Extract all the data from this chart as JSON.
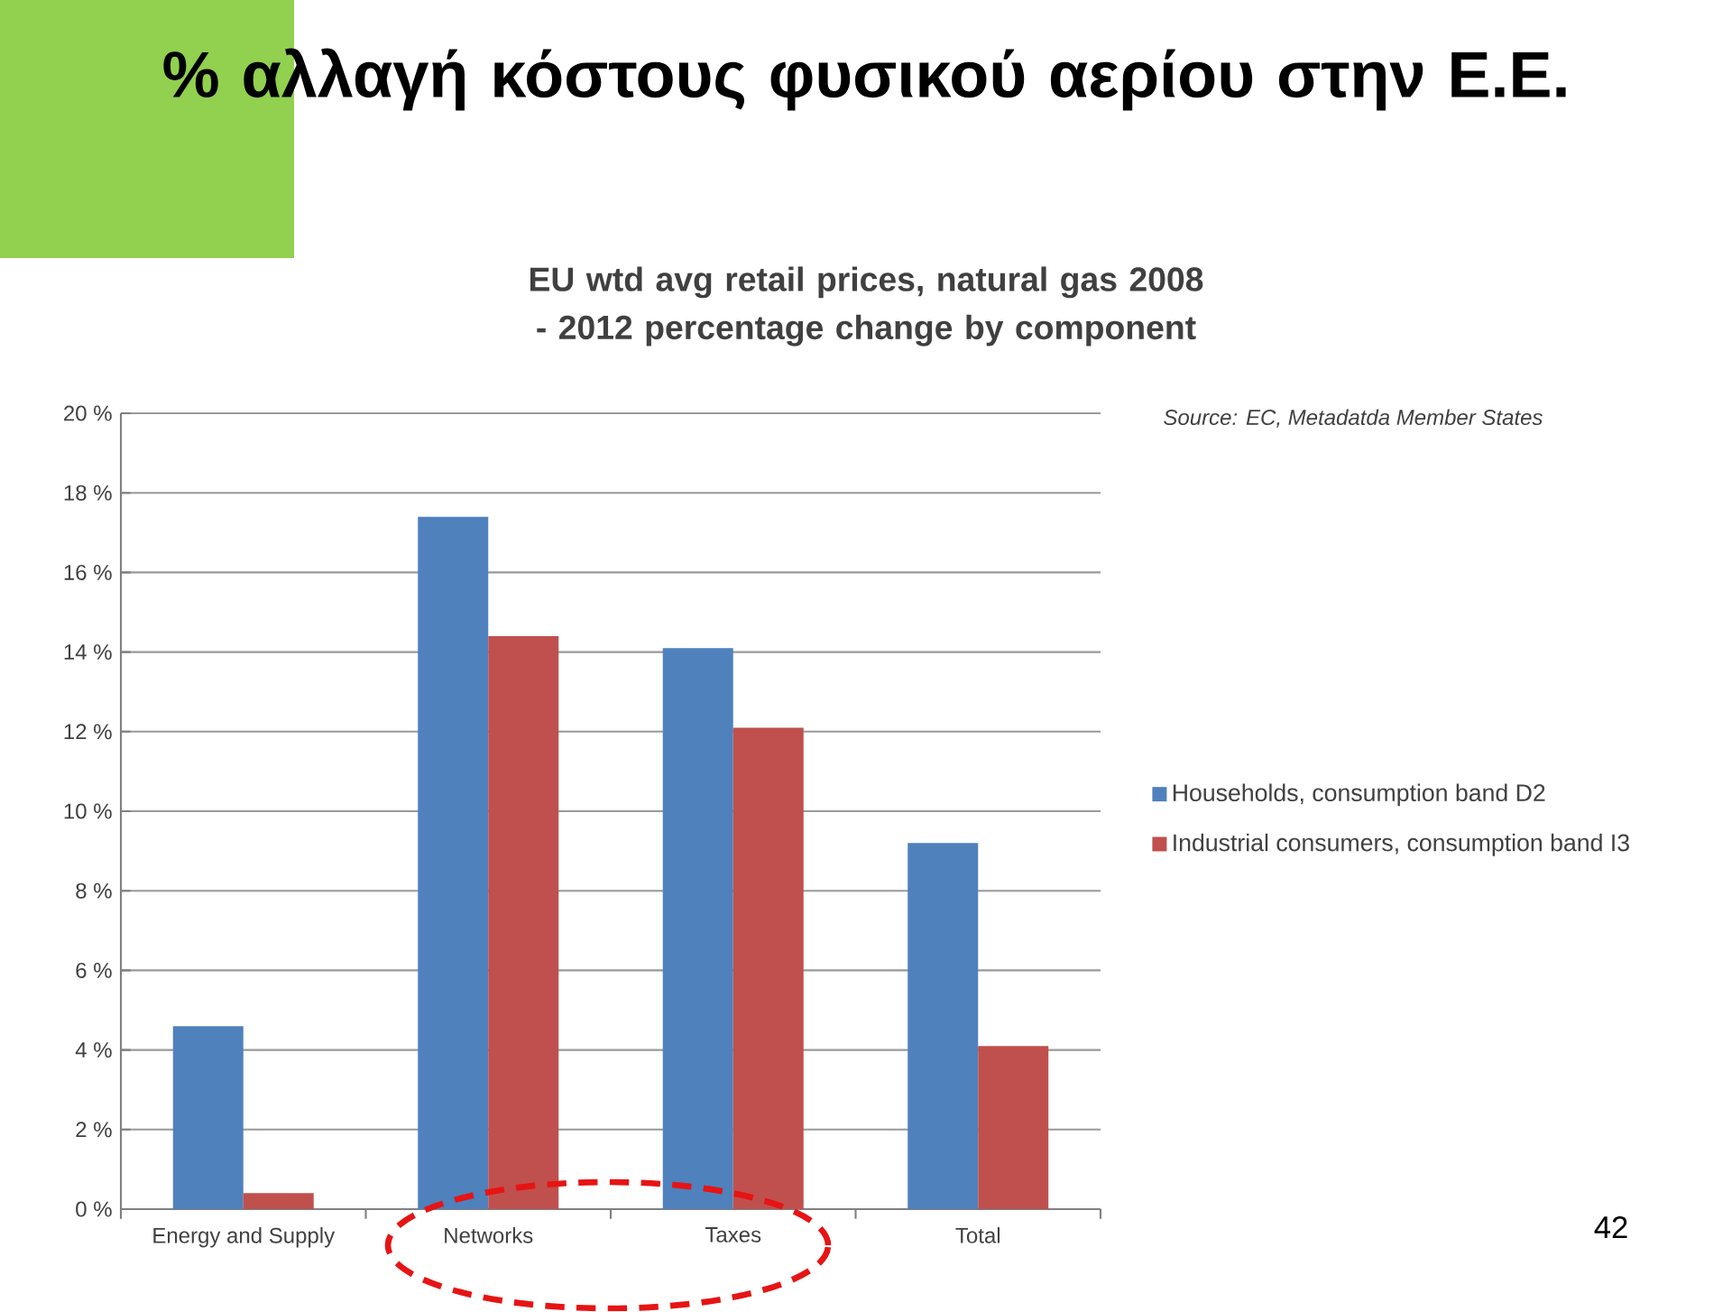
{
  "chart_data": {
    "type": "bar",
    "title": "% αλλαγή κόστους φυσικού αερίου στην Ε.Ε.",
    "subtitle": "EU wtd avg retail prices, natural gas 2008 - 2012 percentage change by component",
    "categories": [
      "Energy and Supply",
      "Networks",
      "Taxes",
      "Total"
    ],
    "series": [
      {
        "name": "Households, consumption band D2",
        "color": "#4f81bd",
        "values": [
          4.6,
          17.4,
          14.1,
          9.2
        ]
      },
      {
        "name": "Industrial consumers, consumption band I3",
        "color": "#c0504d",
        "values": [
          0.4,
          14.4,
          12.1,
          4.1
        ]
      }
    ],
    "ylim": [
      0,
      20
    ],
    "yticks": [
      {
        "value": 0,
        "label": "0 %"
      },
      {
        "value": 2,
        "label": "2 %"
      },
      {
        "value": 4,
        "label": "4 %"
      },
      {
        "value": 6,
        "label": "6 %"
      },
      {
        "value": 8,
        "label": "8 %"
      },
      {
        "value": 10,
        "label": "10 %"
      },
      {
        "value": 12,
        "label": "12 %"
      },
      {
        "value": 14,
        "label": "14 %"
      },
      {
        "value": 16,
        "label": "16 %"
      },
      {
        "value": 18,
        "label": "18 %"
      },
      {
        "value": 20,
        "label": "20 %"
      }
    ],
    "grid": "y",
    "legend": "right",
    "annotations": [
      "Source:  EC, Metadatda  Member States",
      "42"
    ]
  }
}
